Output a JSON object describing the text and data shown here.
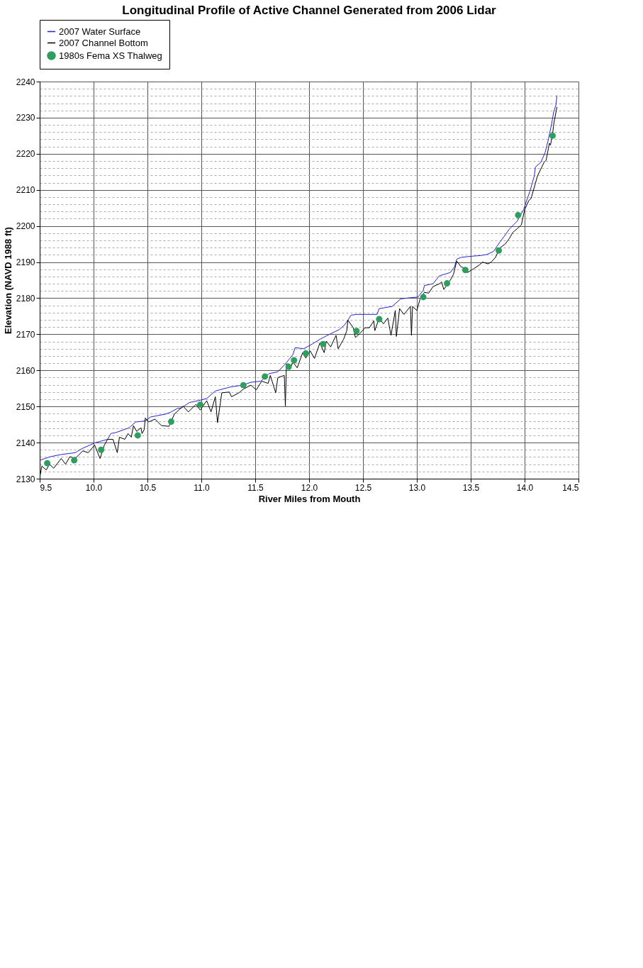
{
  "chart_data": {
    "type": "line",
    "title": "Longitudinal Profile of Active Channel Generated from 2006 Lidar",
    "xlabel": "River Miles from Mouth",
    "ylabel": "Elevation (NAVD 1988 ft)",
    "xlim": [
      9.5,
      14.5
    ],
    "xticks": [
      9.5,
      {
        "value": 10,
        "label": "10.0"
      },
      10.5,
      {
        "value": 11,
        "label": "11.0"
      },
      11.5,
      {
        "value": 12,
        "label": "12.0"
      },
      12.5,
      {
        "value": 13,
        "label": "13.0"
      },
      13.5,
      {
        "value": 14,
        "label": "14.0"
      },
      14.5
    ],
    "ylim": [
      2130,
      2240
    ],
    "yticks": [
      2130,
      {
        "value": 2132,
        "label": null
      },
      {
        "value": 2134,
        "label": null
      },
      {
        "value": 2136,
        "label": null
      },
      {
        "value": 2138,
        "label": null
      },
      2140,
      {
        "value": 2142,
        "label": null
      },
      {
        "value": 2144,
        "label": null
      },
      {
        "value": 2146,
        "label": null
      },
      {
        "value": 2148,
        "label": null
      },
      2150,
      {
        "value": 2152,
        "label": null
      },
      {
        "value": 2154,
        "label": null
      },
      {
        "value": 2156,
        "label": null
      },
      {
        "value": 2158,
        "label": null
      },
      2160,
      {
        "value": 2162,
        "label": null
      },
      {
        "value": 2164,
        "label": null
      },
      {
        "value": 2166,
        "label": null
      },
      {
        "value": 2168,
        "label": null
      },
      2170,
      {
        "value": 2172,
        "label": null
      },
      {
        "value": 2174,
        "label": null
      },
      {
        "value": 2176,
        "label": null
      },
      {
        "value": 2178,
        "label": null
      },
      2180,
      {
        "value": 2182,
        "label": null
      },
      {
        "value": 2184,
        "label": null
      },
      {
        "value": 2186,
        "label": null
      },
      {
        "value": 2188,
        "label": null
      },
      2190,
      {
        "value": 2192,
        "label": null
      },
      {
        "value": 2194,
        "label": null
      },
      {
        "value": 2196,
        "label": null
      },
      {
        "value": 2198,
        "label": null
      },
      2200,
      {
        "value": 2202,
        "label": null
      },
      {
        "value": 2204,
        "label": null
      },
      {
        "value": 2206,
        "label": null
      },
      {
        "value": 2208,
        "label": null
      },
      2210,
      {
        "value": 2212,
        "label": null
      },
      {
        "value": 2214,
        "label": null
      },
      {
        "value": 2216,
        "label": null
      },
      {
        "value": 2218,
        "label": null
      },
      2220,
      {
        "value": 2222,
        "label": null
      },
      {
        "value": 2224,
        "label": null
      },
      {
        "value": 2226,
        "label": null
      },
      {
        "value": 2228,
        "label": null
      },
      2230,
      {
        "value": 2232,
        "label": null
      },
      {
        "value": 2234,
        "label": null
      },
      {
        "value": 2236,
        "label": null
      },
      {
        "value": 2238,
        "label": null
      },
      2240
    ],
    "grid": true,
    "legend": "top",
    "line_style": "solid",
    "series": [
      {
        "name": "2007 Water Surface",
        "color": "#2323d6",
        "x": [
          9.5,
          9.6,
          9.7,
          9.83,
          9.89,
          10.01,
          10.13,
          10.16,
          10.21,
          10.33,
          10.39,
          10.48,
          10.53,
          10.67,
          10.72,
          10.78,
          10.81,
          10.89,
          10.97,
          11.05,
          11.13,
          11.17,
          11.27,
          11.38,
          11.46,
          11.55,
          11.63,
          11.71,
          11.78,
          11.85,
          11.87,
          11.95,
          12.03,
          12.1,
          12.17,
          12.28,
          12.33,
          12.36,
          12.39,
          12.44,
          12.63,
          12.65,
          12.77,
          12.85,
          12.93,
          13.01,
          13.06,
          13.07,
          13.15,
          13.21,
          13.31,
          13.35,
          13.37,
          13.41,
          13.5,
          13.59,
          13.65,
          13.71,
          13.77,
          13.81,
          13.86,
          13.93,
          13.99,
          14.05,
          14.09,
          14.1,
          14.15,
          14.19,
          14.22,
          14.25,
          14.27,
          14.29,
          14.3
        ],
        "values": [
          2135.1,
          2136.1,
          2136.7,
          2137.2,
          2138.3,
          2139.9,
          2140.9,
          2142.5,
          2142.8,
          2144.1,
          2145.7,
          2146.0,
          2147.1,
          2147.9,
          2148.5,
          2149.5,
          2149.5,
          2151.1,
          2151.6,
          2152.2,
          2154.3,
          2154.6,
          2155.4,
          2155.9,
          2156.7,
          2157.0,
          2159.1,
          2159.6,
          2161.8,
          2164.4,
          2166.3,
          2166.0,
          2167.3,
          2168.6,
          2169.7,
          2171.3,
          2172.6,
          2173.9,
          2175.3,
          2175.5,
          2175.5,
          2177.1,
          2177.7,
          2179.8,
          2180.1,
          2180.3,
          2182.2,
          2183.5,
          2184.0,
          2186.2,
          2187.1,
          2188.7,
          2190.8,
          2191.3,
          2191.6,
          2191.8,
          2192.1,
          2192.9,
          2195.5,
          2197.1,
          2199.2,
          2201.3,
          2204.5,
          2209.7,
          2213.9,
          2216.3,
          2217.6,
          2220.3,
          2223.9,
          2228.2,
          2231.6,
          2233.4,
          2236.1
        ]
      },
      {
        "name": "2007 Channel Bottom",
        "color": "#000000",
        "x": [
          9.5,
          9.52,
          9.56,
          9.59,
          9.63,
          9.7,
          9.74,
          9.78,
          9.83,
          9.9,
          9.95,
          10.01,
          10.06,
          10.1,
          10.13,
          10.18,
          10.22,
          10.24,
          10.29,
          10.32,
          10.35,
          10.37,
          10.4,
          10.44,
          10.45,
          10.47,
          10.48,
          10.51,
          10.57,
          10.63,
          10.7,
          10.75,
          10.83,
          10.88,
          10.95,
          10.99,
          11.05,
          11.09,
          11.13,
          11.15,
          11.19,
          11.26,
          11.28,
          11.35,
          11.39,
          11.46,
          11.51,
          11.56,
          11.62,
          11.64,
          11.69,
          11.71,
          11.77,
          11.78,
          11.79,
          11.82,
          11.85,
          11.89,
          11.94,
          11.97,
          12.01,
          12.05,
          12.1,
          12.14,
          12.16,
          12.2,
          12.25,
          12.27,
          12.32,
          12.35,
          12.36,
          12.41,
          12.43,
          12.47,
          12.52,
          12.56,
          12.6,
          12.61,
          12.65,
          12.69,
          12.73,
          12.76,
          12.8,
          12.81,
          12.84,
          12.88,
          12.94,
          12.95,
          12.96,
          13.0,
          13.03,
          13.07,
          13.11,
          13.15,
          13.21,
          13.23,
          13.25,
          13.31,
          13.34,
          13.37,
          13.41,
          13.45,
          13.47,
          13.53,
          13.58,
          13.61,
          13.66,
          13.69,
          13.73,
          13.77,
          13.82,
          13.86,
          13.89,
          13.93,
          13.97,
          14.0,
          14.04,
          14.06,
          14.1,
          14.12,
          14.18,
          14.2,
          14.23,
          14.24,
          14.26,
          14.27,
          14.3
        ],
        "values": [
          2130.3,
          2133.5,
          2132.4,
          2134.0,
          2132.9,
          2135.6,
          2134.0,
          2136.1,
          2135.6,
          2137.7,
          2137.2,
          2139.3,
          2135.6,
          2139.3,
          2140.9,
          2140.9,
          2137.2,
          2141.5,
          2140.9,
          2142.5,
          2141.5,
          2144.7,
          2143.1,
          2144.1,
          2142.5,
          2143.6,
          2146.8,
          2145.7,
          2146.5,
          2144.7,
          2144.5,
          2147.9,
          2150.1,
          2148.5,
          2150.6,
          2149.0,
          2151.6,
          2148.5,
          2152.7,
          2145.5,
          2153.8,
          2154.0,
          2152.7,
          2153.8,
          2154.8,
          2155.9,
          2154.6,
          2157.0,
          2156.4,
          2158.6,
          2153.8,
          2158.0,
          2158.6,
          2150.1,
          2161.8,
          2160.2,
          2162.3,
          2160.7,
          2164.9,
          2163.4,
          2165.4,
          2163.3,
          2167.6,
          2164.9,
          2168.1,
          2166.5,
          2169.7,
          2166.0,
          2168.6,
          2171.0,
          2173.9,
          2171.8,
          2169.1,
          2170.2,
          2171.8,
          2171.8,
          2173.7,
          2171.0,
          2174.5,
          2172.9,
          2174.5,
          2169.7,
          2176.6,
          2169.4,
          2177.1,
          2175.5,
          2177.7,
          2169.7,
          2177.7,
          2176.6,
          2179.8,
          2181.6,
          2181.4,
          2183.2,
          2184.0,
          2184.5,
          2182.4,
          2185.0,
          2186.6,
          2190.3,
          2188.7,
          2188.2,
          2187.1,
          2188.2,
          2189.2,
          2190.0,
          2189.5,
          2190.0,
          2191.3,
          2193.9,
          2195.0,
          2196.6,
          2198.2,
          2199.2,
          2200.3,
          2204.5,
          2207.1,
          2207.6,
          2211.8,
          2213.9,
          2217.6,
          2218.2,
          2222.9,
          2222.4,
          2225.5,
          2228.2,
          2232.9
        ]
      },
      {
        "name": "1980s Fema XS Thalweg",
        "color": "#2e9e5e",
        "type": "scatter",
        "marker": "circle",
        "x": [
          9.57,
          9.82,
          10.07,
          10.41,
          10.72,
          10.99,
          11.39,
          11.59,
          11.81,
          11.86,
          11.97,
          12.13,
          12.44,
          12.65,
          13.06,
          13.28,
          13.45,
          13.76,
          13.94,
          14.26
        ],
        "values": [
          2134.3,
          2135.1,
          2138.0,
          2142.0,
          2145.8,
          2150.5,
          2155.9,
          2158.3,
          2161.0,
          2162.8,
          2164.7,
          2167.3,
          2170.9,
          2174.2,
          2180.3,
          2184.1,
          2187.8,
          2193.2,
          2203.0,
          2225.0
        ]
      }
    ]
  }
}
